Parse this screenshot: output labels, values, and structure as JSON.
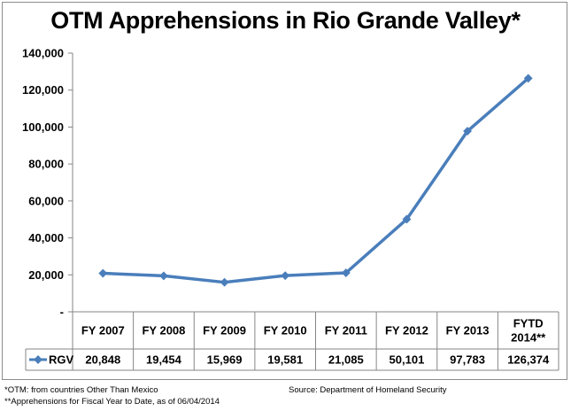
{
  "chart_data": {
    "type": "line",
    "title": "OTM Apprehensions in Rio Grande Valley*",
    "categories": [
      "FY 2007",
      "FY 2008",
      "FY 2009",
      "FY 2010",
      "FY 2011",
      "FY 2012",
      "FY 2013",
      "FYTD\n2014**"
    ],
    "series": [
      {
        "name": "RGV",
        "values": [
          20848,
          19454,
          15969,
          19581,
          21085,
          50101,
          97783,
          126374
        ],
        "value_labels": [
          "20,848",
          "19,454",
          "15,969",
          "19,581",
          "21,085",
          "50,101",
          "97,783",
          "126,374"
        ],
        "color": "#4a7ebb"
      }
    ],
    "ylim": [
      0,
      140000
    ],
    "yticks": [
      0,
      20000,
      40000,
      60000,
      80000,
      100000,
      120000,
      140000
    ],
    "ytick_labels": [
      "-",
      "20,000",
      "40,000",
      "60,000",
      "80,000",
      "100,000",
      "120,000",
      "140,000"
    ],
    "grid": false,
    "data_table": true,
    "xlabel": "",
    "ylabel": ""
  },
  "footnotes": {
    "otm": "*OTM:  from countries Other Than Mexico",
    "fytd": "**Apprehensions for Fiscal Year to Date, as of 06/04/2014",
    "source": "Source: Department of Homeland Security"
  }
}
